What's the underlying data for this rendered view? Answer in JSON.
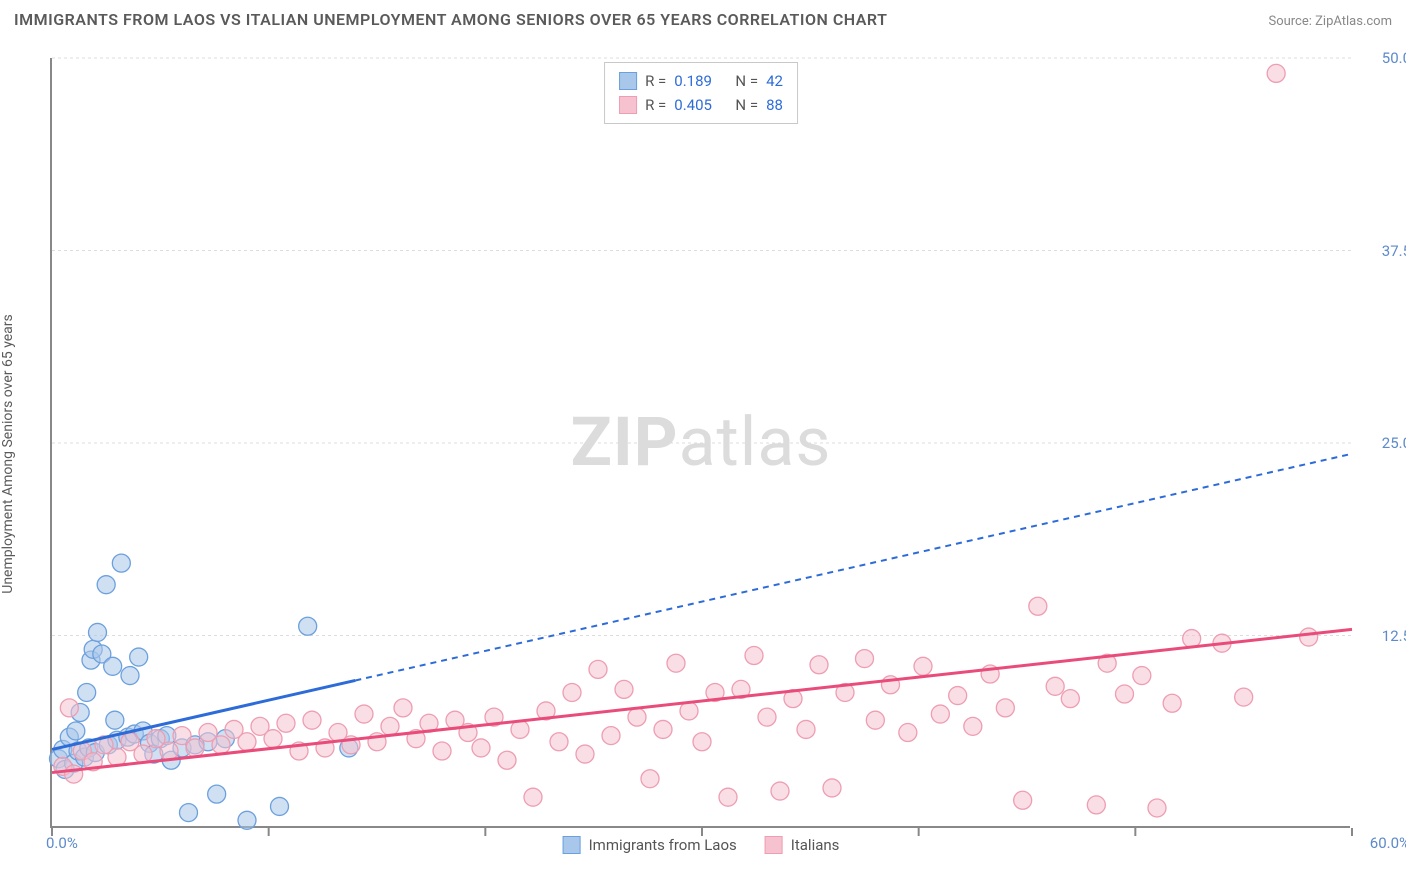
{
  "title": "IMMIGRANTS FROM LAOS VS ITALIAN UNEMPLOYMENT AMONG SENIORS OVER 65 YEARS CORRELATION CHART",
  "source_label": "Source: ",
  "source_name": "ZipAtlas.com",
  "y_axis_label": "Unemployment Among Seniors over 65 years",
  "watermark_bold": "ZIP",
  "watermark_light": "atlas",
  "chart": {
    "type": "scatter",
    "background_color": "#ffffff",
    "grid_color": "#dddddd",
    "axis_color": "#888888",
    "xlim": [
      0,
      60
    ],
    "ylim": [
      0,
      50
    ],
    "x_ticks": [
      0,
      10,
      20,
      30,
      40,
      50,
      60
    ],
    "x_tick_labels": {
      "0": "0.0%",
      "60": "60.0%"
    },
    "y_ticks": [
      12.5,
      25.0,
      37.5,
      50.0
    ],
    "y_tick_labels": [
      "12.5%",
      "25.0%",
      "37.5%",
      "50.0%"
    ],
    "marker_radius": 9,
    "marker_opacity": 0.55,
    "trend_line_width": 3,
    "trend_dash": "6,5"
  },
  "series": [
    {
      "key": "laos",
      "label": "Immigrants from Laos",
      "R": "0.189",
      "N": "42",
      "color_fill": "#a9c7ea",
      "color_stroke": "#6ca0dd",
      "trend_color": "#2d6bd8",
      "trend_x_solid_end": 14,
      "trend_intercept": 5.1,
      "trend_slope": 0.32,
      "points": [
        [
          0.3,
          4.5
        ],
        [
          0.5,
          5.1
        ],
        [
          0.6,
          3.8
        ],
        [
          0.8,
          5.9
        ],
        [
          1.0,
          4.2
        ],
        [
          1.1,
          6.3
        ],
        [
          1.2,
          5.0
        ],
        [
          1.3,
          7.5
        ],
        [
          1.5,
          4.6
        ],
        [
          1.6,
          8.8
        ],
        [
          1.7,
          5.2
        ],
        [
          1.8,
          10.9
        ],
        [
          1.9,
          11.6
        ],
        [
          2.0,
          4.9
        ],
        [
          2.1,
          12.7
        ],
        [
          2.3,
          11.3
        ],
        [
          2.5,
          15.8
        ],
        [
          2.6,
          5.4
        ],
        [
          2.8,
          10.5
        ],
        [
          2.9,
          7.0
        ],
        [
          3.0,
          5.7
        ],
        [
          3.2,
          17.2
        ],
        [
          3.5,
          5.9
        ],
        [
          3.6,
          9.9
        ],
        [
          3.8,
          6.1
        ],
        [
          4.0,
          11.1
        ],
        [
          4.2,
          6.3
        ],
        [
          4.5,
          5.5
        ],
        [
          4.7,
          4.8
        ],
        [
          5.0,
          5.8
        ],
        [
          5.3,
          6.0
        ],
        [
          5.5,
          4.4
        ],
        [
          6.0,
          5.2
        ],
        [
          6.3,
          1.0
        ],
        [
          6.6,
          5.4
        ],
        [
          7.2,
          5.6
        ],
        [
          7.6,
          2.2
        ],
        [
          8.0,
          5.8
        ],
        [
          9.0,
          0.5
        ],
        [
          10.5,
          1.4
        ],
        [
          11.8,
          13.1
        ],
        [
          13.7,
          5.2
        ]
      ]
    },
    {
      "key": "italians",
      "label": "Italians",
      "R": "0.405",
      "N": "88",
      "color_fill": "#f6c2cf",
      "color_stroke": "#ee9db2",
      "trend_color": "#e94b7a",
      "trend_x_solid_end": 60,
      "trend_intercept": 3.6,
      "trend_slope": 0.155,
      "points": [
        [
          0.5,
          4.0
        ],
        [
          0.8,
          7.8
        ],
        [
          1.0,
          3.5
        ],
        [
          1.4,
          5.0
        ],
        [
          1.9,
          4.3
        ],
        [
          2.4,
          5.4
        ],
        [
          3.0,
          4.6
        ],
        [
          3.6,
          5.6
        ],
        [
          4.2,
          4.8
        ],
        [
          4.8,
          5.8
        ],
        [
          5.4,
          5.0
        ],
        [
          6.0,
          6.0
        ],
        [
          6.6,
          5.2
        ],
        [
          7.2,
          6.2
        ],
        [
          7.8,
          5.4
        ],
        [
          8.4,
          6.4
        ],
        [
          9.0,
          5.6
        ],
        [
          9.6,
          6.6
        ],
        [
          10.2,
          5.8
        ],
        [
          10.8,
          6.8
        ],
        [
          11.4,
          5.0
        ],
        [
          12.0,
          7.0
        ],
        [
          12.6,
          5.2
        ],
        [
          13.2,
          6.2
        ],
        [
          13.8,
          5.4
        ],
        [
          14.4,
          7.4
        ],
        [
          15.0,
          5.6
        ],
        [
          15.6,
          6.6
        ],
        [
          16.2,
          7.8
        ],
        [
          16.8,
          5.8
        ],
        [
          17.4,
          6.8
        ],
        [
          18.0,
          5.0
        ],
        [
          18.6,
          7.0
        ],
        [
          19.2,
          6.2
        ],
        [
          19.8,
          5.2
        ],
        [
          20.4,
          7.2
        ],
        [
          21.0,
          4.4
        ],
        [
          21.6,
          6.4
        ],
        [
          22.2,
          2.0
        ],
        [
          22.8,
          7.6
        ],
        [
          23.4,
          5.6
        ],
        [
          24.0,
          8.8
        ],
        [
          24.6,
          4.8
        ],
        [
          25.2,
          10.3
        ],
        [
          25.8,
          6.0
        ],
        [
          26.4,
          9.0
        ],
        [
          27.0,
          7.2
        ],
        [
          27.6,
          3.2
        ],
        [
          28.2,
          6.4
        ],
        [
          28.8,
          10.7
        ],
        [
          29.4,
          7.6
        ],
        [
          30.0,
          5.6
        ],
        [
          30.6,
          8.8
        ],
        [
          31.2,
          2.0
        ],
        [
          31.8,
          9.0
        ],
        [
          32.4,
          11.2
        ],
        [
          33.0,
          7.2
        ],
        [
          33.6,
          2.4
        ],
        [
          34.2,
          8.4
        ],
        [
          34.8,
          6.4
        ],
        [
          35.4,
          10.6
        ],
        [
          36.0,
          2.6
        ],
        [
          36.6,
          8.8
        ],
        [
          37.5,
          11.0
        ],
        [
          38.0,
          7.0
        ],
        [
          38.7,
          9.3
        ],
        [
          39.5,
          6.2
        ],
        [
          40.2,
          10.5
        ],
        [
          41.0,
          7.4
        ],
        [
          41.8,
          8.6
        ],
        [
          42.5,
          6.6
        ],
        [
          43.3,
          10.0
        ],
        [
          44.0,
          7.8
        ],
        [
          44.8,
          1.8
        ],
        [
          45.5,
          14.4
        ],
        [
          46.3,
          9.2
        ],
        [
          47.0,
          8.4
        ],
        [
          48.2,
          1.5
        ],
        [
          48.7,
          10.7
        ],
        [
          49.5,
          8.7
        ],
        [
          50.3,
          9.9
        ],
        [
          51.0,
          1.3
        ],
        [
          51.7,
          8.1
        ],
        [
          52.6,
          12.3
        ],
        [
          54.0,
          12.0
        ],
        [
          55.0,
          8.5
        ],
        [
          56.5,
          49.0
        ],
        [
          58.0,
          12.4
        ]
      ]
    }
  ],
  "legend_labels": {
    "R": "R  =",
    "N": "N  ="
  }
}
